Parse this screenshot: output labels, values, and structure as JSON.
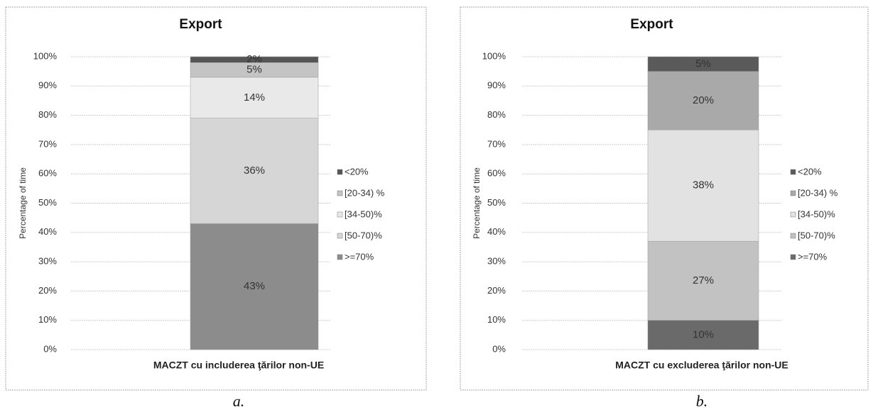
{
  "chart_data": [
    {
      "type": "bar",
      "stacked": true,
      "title": "Export",
      "ylabel": "Percentage of time",
      "caption": "a.",
      "categories": [
        "MACZT cu includerea ţărilor non-UE"
      ],
      "series": [
        {
          "name": ">=70%",
          "color": "#8c8c8c",
          "values": [
            43
          ],
          "value_labels": [
            "43%"
          ]
        },
        {
          "name": "[50-70)%",
          "color": "#d6d6d6",
          "values": [
            36
          ],
          "value_labels": [
            "36%"
          ]
        },
        {
          "name": "[34-50)%",
          "color": "#e9e9e9",
          "values": [
            14
          ],
          "value_labels": [
            "14%"
          ]
        },
        {
          "name": "[20-34) %",
          "color": "#c4c4c4",
          "values": [
            5
          ],
          "value_labels": [
            "5%"
          ]
        },
        {
          "name": "<20%",
          "color": "#555555",
          "values": [
            2
          ],
          "value_labels": [
            "2%"
          ]
        }
      ],
      "ylim": [
        0,
        100
      ],
      "yticks": [
        {
          "value": 0,
          "label": "0%"
        },
        {
          "value": 10,
          "label": "10%"
        },
        {
          "value": 20,
          "label": "20%"
        },
        {
          "value": 30,
          "label": "30%"
        },
        {
          "value": 40,
          "label": "40%"
        },
        {
          "value": 50,
          "label": "50%"
        },
        {
          "value": 60,
          "label": "60%"
        },
        {
          "value": 70,
          "label": "70%"
        },
        {
          "value": 80,
          "label": "80%"
        },
        {
          "value": 90,
          "label": "90%"
        },
        {
          "value": 100,
          "label": "100%"
        }
      ],
      "grid": true,
      "legend": "right"
    },
    {
      "type": "bar",
      "stacked": true,
      "title": "Export",
      "ylabel": "Percentage of time",
      "caption": "b.",
      "categories": [
        "MACZT cu excluderea ţărilor non-UE"
      ],
      "series": [
        {
          "name": ">=70%",
          "color": "#6a6a6a",
          "values": [
            10
          ],
          "value_labels": [
            "10%"
          ]
        },
        {
          "name": "[50-70)%",
          "color": "#c2c2c2",
          "values": [
            27
          ],
          "value_labels": [
            "27%"
          ]
        },
        {
          "name": "[34-50)%",
          "color": "#e2e2e2",
          "values": [
            38
          ],
          "value_labels": [
            "38%"
          ]
        },
        {
          "name": "[20-34) %",
          "color": "#a9a9a9",
          "values": [
            20
          ],
          "value_labels": [
            "20%"
          ]
        },
        {
          "name": "<20%",
          "color": "#5a5a5a",
          "values": [
            5
          ],
          "value_labels": [
            "5%"
          ]
        }
      ],
      "ylim": [
        0,
        100
      ],
      "yticks": [
        {
          "value": 0,
          "label": "0%"
        },
        {
          "value": 10,
          "label": "10%"
        },
        {
          "value": 20,
          "label": "20%"
        },
        {
          "value": 30,
          "label": "30%"
        },
        {
          "value": 40,
          "label": "40%"
        },
        {
          "value": 50,
          "label": "50%"
        },
        {
          "value": 60,
          "label": "60%"
        },
        {
          "value": 70,
          "label": "70%"
        },
        {
          "value": 80,
          "label": "80%"
        },
        {
          "value": 90,
          "label": "90%"
        },
        {
          "value": 100,
          "label": "100%"
        }
      ],
      "grid": true,
      "legend": "right"
    }
  ]
}
